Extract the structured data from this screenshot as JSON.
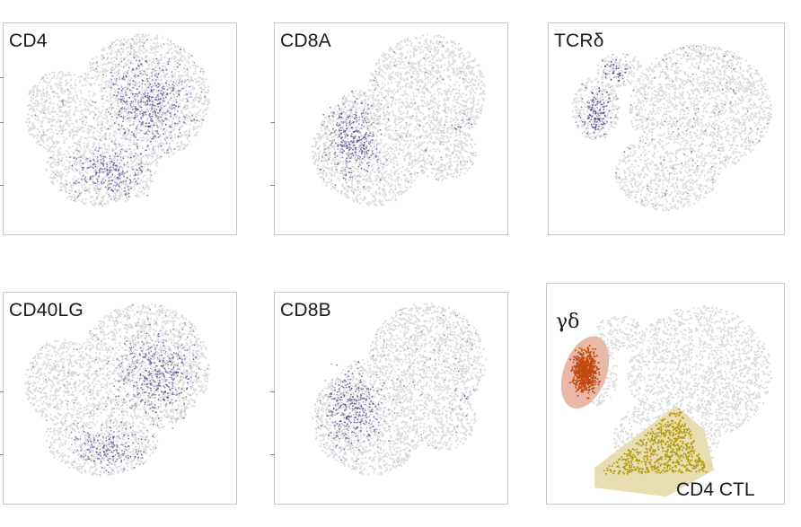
{
  "chart_data": [
    {
      "type": "scatter",
      "title": "CD4",
      "colors": {
        "background_cells": "#dcdcdc",
        "expression": "#4b3a87"
      },
      "high_expression_regions": [
        {
          "cx": 0.62,
          "cy": 0.38,
          "rx": 0.26,
          "ry": 0.3,
          "intensity": 0.6
        },
        {
          "cx": 0.45,
          "cy": 0.7,
          "rx": 0.22,
          "ry": 0.16,
          "intensity": 0.65
        }
      ]
    },
    {
      "type": "scatter",
      "title": "CD8A",
      "colors": {
        "background_cells": "#dcdcdc",
        "expression": "#4b3a87"
      },
      "high_expression_regions": [
        {
          "cx": 0.33,
          "cy": 0.55,
          "rx": 0.17,
          "ry": 0.26,
          "intensity": 0.75
        },
        {
          "cx": 0.8,
          "cy": 0.48,
          "rx": 0.06,
          "ry": 0.06,
          "intensity": 0.3
        }
      ]
    },
    {
      "type": "scatter",
      "title": "TCRδ",
      "colors": {
        "background_cells": "#dcdcdc",
        "expression": "#2e1f78"
      },
      "high_expression_regions": [
        {
          "cx": 0.2,
          "cy": 0.42,
          "rx": 0.09,
          "ry": 0.15,
          "intensity": 0.95
        },
        {
          "cx": 0.28,
          "cy": 0.22,
          "rx": 0.08,
          "ry": 0.08,
          "intensity": 0.7
        }
      ]
    },
    {
      "type": "scatter",
      "title": "CD40LG",
      "colors": {
        "background_cells": "#dcdcdc",
        "expression": "#4b3a87"
      },
      "high_expression_regions": [
        {
          "cx": 0.65,
          "cy": 0.38,
          "rx": 0.25,
          "ry": 0.28,
          "intensity": 0.6
        },
        {
          "cx": 0.45,
          "cy": 0.72,
          "rx": 0.22,
          "ry": 0.15,
          "intensity": 0.6
        }
      ]
    },
    {
      "type": "scatter",
      "title": "CD8B",
      "colors": {
        "background_cells": "#dcdcdc",
        "expression": "#4b3a87"
      },
      "high_expression_regions": [
        {
          "cx": 0.33,
          "cy": 0.55,
          "rx": 0.17,
          "ry": 0.26,
          "intensity": 0.75
        },
        {
          "cx": 0.8,
          "cy": 0.48,
          "rx": 0.06,
          "ry": 0.06,
          "intensity": 0.3
        }
      ]
    },
    {
      "type": "scatter",
      "title": "",
      "colors": {
        "background_cells": "#dcdcdc"
      },
      "clusters": [
        {
          "label": "γδ",
          "color": "#c04a10",
          "halo": "#eab8a6"
        },
        {
          "label": "CD4 CTL",
          "color": "#b79a0b",
          "halo": "#e6ddb0"
        }
      ]
    }
  ]
}
